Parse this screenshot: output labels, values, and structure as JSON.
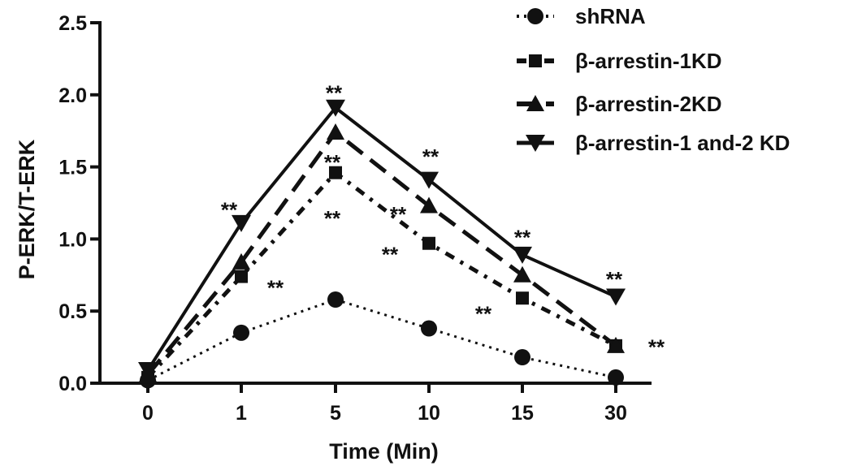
{
  "chart_data": {
    "type": "line",
    "title": "",
    "xlabel": "Time (Min)",
    "ylabel": "P-ERK/T-ERK",
    "categories": [
      "0",
      "1",
      "5",
      "10",
      "15",
      "30"
    ],
    "ylim": [
      0,
      2.5
    ],
    "yticks": [
      "0.0",
      "0.5",
      "1.0",
      "1.5",
      "2.0",
      "2.5"
    ],
    "grid": false,
    "legend_position": "top-right",
    "series": [
      {
        "name": "shRNA",
        "marker": "circle",
        "dash": "dotted",
        "values": [
          0.02,
          0.35,
          0.58,
          0.38,
          0.18,
          0.04
        ]
      },
      {
        "name": "β-arrestin-1KD",
        "marker": "square",
        "dash": "dash-dot",
        "values": [
          0.04,
          0.74,
          1.46,
          0.97,
          0.59,
          0.26
        ]
      },
      {
        "name": "β-arrestin-2KD",
        "marker": "triangle-up",
        "dash": "dashed",
        "values": [
          0.06,
          0.84,
          1.74,
          1.23,
          0.75,
          0.26
        ]
      },
      {
        "name": "β-arrestin-1 and-2 KD",
        "marker": "triangle-down",
        "dash": "solid",
        "values": [
          0.09,
          1.11,
          1.91,
          1.41,
          0.89,
          0.6
        ]
      }
    ],
    "annotations": [
      {
        "text": "**",
        "x": "1",
        "y": 1.23
      },
      {
        "text": "**",
        "x": "1",
        "y": 0.69
      },
      {
        "text": "**",
        "x": "5",
        "y": 2.04
      },
      {
        "text": "**",
        "x": "5",
        "y": 1.56
      },
      {
        "text": "**",
        "x": "5",
        "y": 1.17
      },
      {
        "text": "**",
        "x": "10",
        "y": 1.6
      },
      {
        "text": "**",
        "x": "10",
        "y": 1.2
      },
      {
        "text": "**",
        "x": "10",
        "y": 0.92
      },
      {
        "text": "**",
        "x": "15",
        "y": 1.04
      },
      {
        "text": "**",
        "x": "15",
        "y": 0.51
      },
      {
        "text": "**",
        "x": "30",
        "y": 0.75
      },
      {
        "text": "**",
        "x": "30",
        "y": 0.28
      }
    ]
  }
}
